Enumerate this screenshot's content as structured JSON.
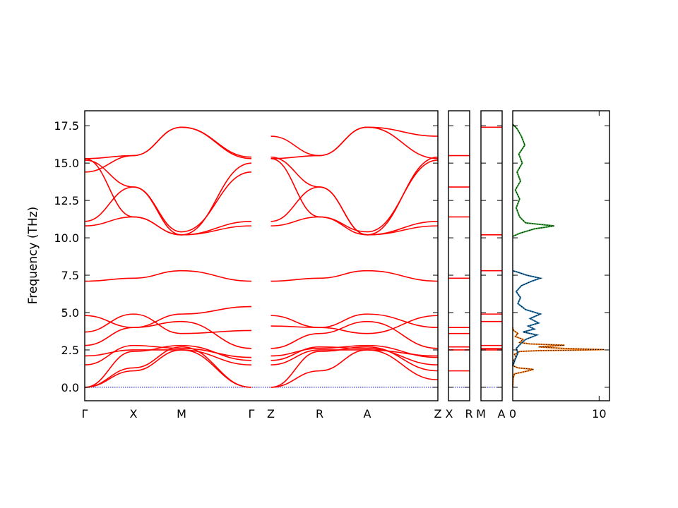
{
  "colors": {
    "band": "#ff0000",
    "zero_line": "#0000cc",
    "dos_series_1": "#ff7f0e",
    "dos_series_2": "#1f77b4",
    "dos_series_3": "#2ca02c",
    "dos_total_dotted": "#000000"
  },
  "chart_data": {
    "type": "line",
    "ylabel": "Frequency (THz)",
    "ylim": [
      -0.9,
      18.5
    ],
    "yticks": [
      "0.0",
      "2.5",
      "5.0",
      "7.5",
      "10.0",
      "12.5",
      "15.0",
      "17.5"
    ],
    "ytick_values": [
      0.0,
      2.5,
      5.0,
      7.5,
      10.0,
      12.5,
      15.0,
      17.5
    ],
    "grid": false,
    "band_panels": [
      {
        "labels": [
          "Γ",
          "X",
          "M",
          "Γ",
          "Z",
          "R",
          "A",
          "Z"
        ],
        "segments": [
          {
            "from": "Γ",
            "to": "X",
            "bands": [
              [
                0.0,
                1.1
              ],
              [
                0.0,
                1.3
              ],
              [
                0.0,
                2.4
              ],
              [
                1.5,
                2.8
              ],
              [
                2.1,
                2.5
              ],
              [
                2.8,
                4.0
              ],
              [
                3.7,
                4.9
              ],
              [
                4.8,
                4.0
              ],
              [
                7.1,
                7.3
              ],
              [
                10.8,
                11.4
              ],
              [
                11.1,
                13.4
              ],
              [
                14.4,
                15.5
              ],
              [
                15.2,
                13.4
              ],
              [
                15.3,
                11.4
              ],
              [
                15.3,
                15.5
              ]
            ]
          },
          {
            "from": "X",
            "to": "M",
            "bands": [
              [
                1.1,
                2.5
              ],
              [
                1.3,
                2.7
              ],
              [
                2.4,
                2.8
              ],
              [
                2.8,
                2.6
              ],
              [
                2.5,
                2.5
              ],
              [
                4.0,
                4.4
              ],
              [
                4.9,
                3.6
              ],
              [
                4.0,
                4.9
              ],
              [
                7.3,
                7.8
              ],
              [
                11.4,
                10.2
              ],
              [
                13.4,
                10.2
              ],
              [
                15.5,
                17.4
              ],
              [
                13.4,
                10.4
              ],
              [
                11.4,
                10.2
              ],
              [
                15.5,
                17.4
              ]
            ]
          },
          {
            "from": "M",
            "to": "Γ",
            "bands": [
              [
                2.5,
                0.0
              ],
              [
                2.7,
                0.0
              ],
              [
                2.8,
                1.8
              ],
              [
                2.6,
                2.0
              ],
              [
                2.5,
                1.5
              ],
              [
                4.4,
                2.6
              ],
              [
                3.6,
                3.8
              ],
              [
                4.9,
                5.4
              ],
              [
                7.8,
                7.1
              ],
              [
                10.2,
                11.1
              ],
              [
                10.2,
                10.8
              ],
              [
                17.4,
                15.3
              ],
              [
                10.4,
                14.4
              ],
              [
                10.2,
                15.0
              ],
              [
                17.4,
                15.4
              ]
            ]
          },
          {
            "from": "Z",
            "to": "R",
            "bands": [
              [
                0.0,
                1.1
              ],
              [
                0.0,
                2.4
              ],
              [
                1.8,
                2.7
              ],
              [
                2.1,
                2.6
              ],
              [
                1.5,
                2.5
              ],
              [
                2.6,
                3.6
              ],
              [
                4.1,
                4.0
              ],
              [
                4.8,
                4.0
              ],
              [
                7.1,
                7.3
              ],
              [
                10.8,
                11.4
              ],
              [
                11.1,
                13.4
              ],
              [
                15.3,
                11.4
              ],
              [
                15.3,
                15.5
              ],
              [
                16.8,
                15.5
              ],
              [
                15.4,
                13.4
              ]
            ]
          },
          {
            "from": "R",
            "to": "A",
            "bands": [
              [
                1.1,
                2.5
              ],
              [
                2.4,
                2.7
              ],
              [
                2.7,
                2.6
              ],
              [
                2.6,
                2.8
              ],
              [
                2.5,
                2.5
              ],
              [
                3.6,
                4.4
              ],
              [
                4.0,
                4.9
              ],
              [
                4.0,
                3.6
              ],
              [
                7.3,
                7.8
              ],
              [
                11.4,
                10.2
              ],
              [
                13.4,
                10.2
              ],
              [
                11.4,
                10.4
              ],
              [
                15.5,
                17.4
              ],
              [
                15.5,
                17.4
              ],
              [
                13.4,
                10.2
              ]
            ]
          },
          {
            "from": "A",
            "to": "Z",
            "bands": [
              [
                2.5,
                0.5
              ],
              [
                2.7,
                1.1
              ],
              [
                2.6,
                1.5
              ],
              [
                2.8,
                2.0
              ],
              [
                2.5,
                2.1
              ],
              [
                4.4,
                2.6
              ],
              [
                4.9,
                4.0
              ],
              [
                3.6,
                4.8
              ],
              [
                7.8,
                7.1
              ],
              [
                10.2,
                10.8
              ],
              [
                10.2,
                11.1
              ],
              [
                10.4,
                15.2
              ],
              [
                17.4,
                15.3
              ],
              [
                17.4,
                16.8
              ],
              [
                10.2,
                15.4
              ]
            ]
          }
        ]
      },
      {
        "labels": [
          "X",
          "R"
        ],
        "flat_bands": [
          1.1,
          2.5,
          2.7,
          3.6,
          4.0,
          7.3,
          11.4,
          13.4,
          15.5
        ]
      },
      {
        "labels": [
          "M",
          "A"
        ],
        "flat_bands": [
          2.5,
          2.6,
          2.8,
          4.4,
          4.9,
          7.8,
          10.2,
          17.4
        ]
      }
    ],
    "dos_panel": {
      "xticks": [
        "0",
        "10"
      ],
      "xtick_values": [
        0,
        10
      ],
      "xlim": [
        0,
        11.2
      ],
      "series": [
        {
          "points": [
            [
              0.0,
              1.5
            ],
            [
              0.1,
              1.8
            ],
            [
              0.4,
              2.0
            ],
            [
              0.2,
              2.2
            ],
            [
              0.8,
              2.4
            ],
            [
              3.0,
              2.45
            ],
            [
              8.5,
              2.5
            ],
            [
              10.6,
              2.52
            ],
            [
              6.0,
              2.6
            ],
            [
              3.0,
              2.7
            ],
            [
              6.0,
              2.82
            ],
            [
              2.0,
              2.9
            ],
            [
              0.8,
              3.0
            ],
            [
              1.2,
              3.2
            ],
            [
              0.3,
              3.4
            ],
            [
              0.6,
              3.6
            ],
            [
              0.1,
              3.8
            ],
            [
              0.0,
              4.0
            ],
            [
              0.0,
              0.0
            ],
            [
              0.05,
              0.6
            ],
            [
              0.2,
              0.9
            ],
            [
              1.8,
              1.1
            ],
            [
              2.4,
              1.2
            ],
            [
              0.6,
              1.3
            ],
            [
              0.2,
              1.4
            ]
          ]
        },
        {
          "points": [
            [
              0.0,
              1.4
            ],
            [
              0.3,
              1.9
            ],
            [
              0.6,
              2.3
            ],
            [
              0.4,
              2.6
            ],
            [
              0.9,
              2.9
            ],
            [
              1.5,
              3.2
            ],
            [
              2.8,
              3.5
            ],
            [
              1.2,
              3.7
            ],
            [
              2.5,
              3.9
            ],
            [
              1.8,
              4.1
            ],
            [
              3.0,
              4.3
            ],
            [
              2.0,
              4.6
            ],
            [
              3.2,
              4.9
            ],
            [
              1.5,
              5.2
            ],
            [
              0.6,
              5.6
            ],
            [
              0.9,
              6.0
            ],
            [
              0.4,
              6.4
            ],
            [
              1.0,
              6.8
            ],
            [
              2.2,
              7.1
            ],
            [
              3.2,
              7.3
            ],
            [
              1.6,
              7.5
            ],
            [
              0.6,
              7.7
            ],
            [
              0.0,
              7.8
            ]
          ]
        },
        {
          "points": [
            [
              0.0,
              10.1
            ],
            [
              0.8,
              10.3
            ],
            [
              2.5,
              10.6
            ],
            [
              4.8,
              10.8
            ],
            [
              1.5,
              11.0
            ],
            [
              0.8,
              11.4
            ],
            [
              0.4,
              12.0
            ],
            [
              0.8,
              12.6
            ],
            [
              0.3,
              13.2
            ],
            [
              0.9,
              13.8
            ],
            [
              0.5,
              14.4
            ],
            [
              1.1,
              15.0
            ],
            [
              0.7,
              15.6
            ],
            [
              1.4,
              16.2
            ],
            [
              1.0,
              16.8
            ],
            [
              0.5,
              17.3
            ],
            [
              0.0,
              17.6
            ]
          ]
        }
      ]
    }
  }
}
